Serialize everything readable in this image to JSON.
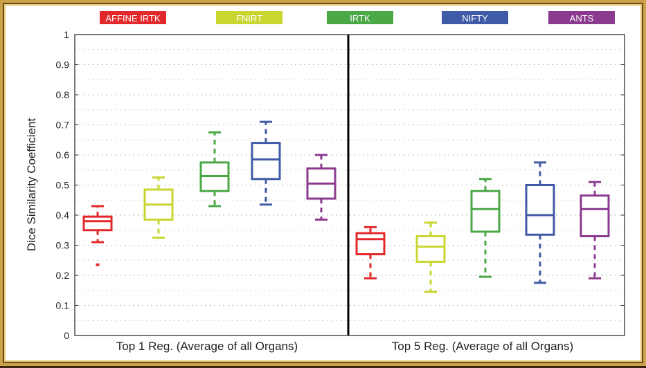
{
  "chart_data": {
    "type": "box",
    "ylabel": "Dice Similarity Coefficient",
    "ylim": [
      0,
      1
    ],
    "yticks": [
      0,
      0.1,
      0.2,
      0.3,
      0.4,
      0.5,
      0.6,
      0.7,
      0.8,
      0.9,
      1
    ],
    "ytick_labels": [
      "0",
      "0.1",
      "0.2",
      "0.3",
      "0.4",
      "0.5",
      "0.6",
      "0.7",
      "0.8",
      "0.9",
      "1"
    ],
    "grid": "dotted horizontal",
    "legend_placement": "top",
    "groups": [
      {
        "label": "Top 1 Reg. (Average of all Organs)"
      },
      {
        "label": "Top 5 Reg. (Average of all Organs)"
      }
    ],
    "series": [
      {
        "name": "AFFINE IRTK",
        "color": "#e3282b",
        "boxes": [
          {
            "whisker_low": 0.31,
            "q1": 0.35,
            "median": 0.38,
            "q3": 0.395,
            "whisker_high": 0.43,
            "outliers": [
              0.235
            ]
          },
          {
            "whisker_low": 0.19,
            "q1": 0.27,
            "median": 0.32,
            "q3": 0.34,
            "whisker_high": 0.36,
            "outliers": []
          }
        ]
      },
      {
        "name": "FNIRT",
        "color": "#c8d62f",
        "boxes": [
          {
            "whisker_low": 0.325,
            "q1": 0.385,
            "median": 0.435,
            "q3": 0.485,
            "whisker_high": 0.525,
            "outliers": []
          },
          {
            "whisker_low": 0.145,
            "q1": 0.245,
            "median": 0.295,
            "q3": 0.33,
            "whisker_high": 0.375,
            "outliers": []
          }
        ]
      },
      {
        "name": "IRTK",
        "color": "#4ba847",
        "boxes": [
          {
            "whisker_low": 0.43,
            "q1": 0.48,
            "median": 0.53,
            "q3": 0.575,
            "whisker_high": 0.675,
            "outliers": []
          },
          {
            "whisker_low": 0.195,
            "q1": 0.345,
            "median": 0.42,
            "q3": 0.48,
            "whisker_high": 0.52,
            "outliers": []
          }
        ]
      },
      {
        "name": "NIFTY",
        "color": "#3f5aa6",
        "boxes": [
          {
            "whisker_low": 0.435,
            "q1": 0.52,
            "median": 0.585,
            "q3": 0.64,
            "whisker_high": 0.71,
            "outliers": []
          },
          {
            "whisker_low": 0.175,
            "q1": 0.335,
            "median": 0.4,
            "q3": 0.5,
            "whisker_high": 0.575,
            "outliers": []
          }
        ]
      },
      {
        "name": "ANTS",
        "color": "#8b3a8f",
        "boxes": [
          {
            "whisker_low": 0.385,
            "q1": 0.455,
            "median": 0.505,
            "q3": 0.555,
            "whisker_high": 0.6,
            "outliers": []
          },
          {
            "whisker_low": 0.19,
            "q1": 0.33,
            "median": 0.42,
            "q3": 0.465,
            "whisker_high": 0.51,
            "outliers": []
          }
        ]
      }
    ]
  }
}
